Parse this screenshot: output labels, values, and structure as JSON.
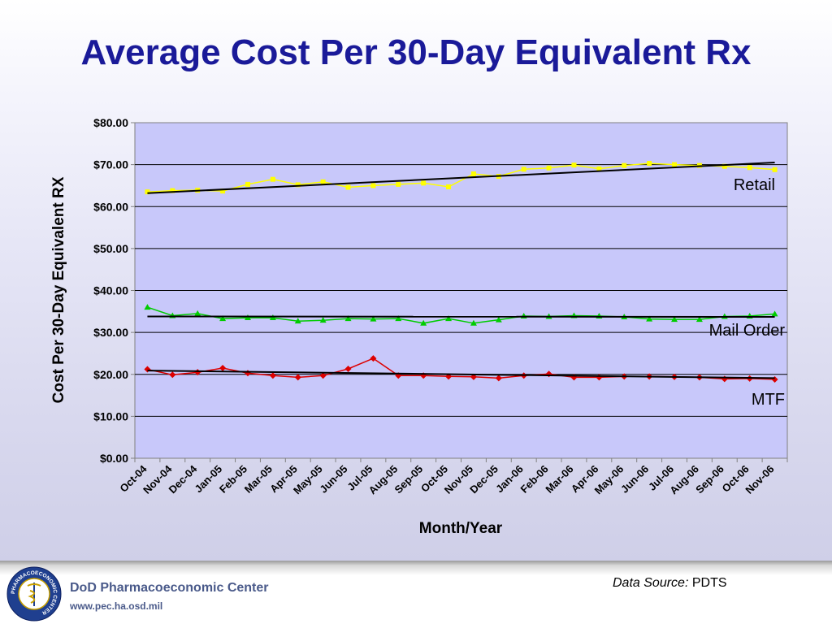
{
  "slide": {
    "title": "Average Cost Per 30-Day Equivalent Rx",
    "data_source_label": "Data Source:",
    "data_source_value": "PDTS"
  },
  "footer": {
    "org_name": "DoD Pharmacoeconomic Center",
    "url": "www.pec.ha.osd.mil",
    "seal_icon": "pharmacoeconomic-center-seal-icon",
    "seal_text": "PHARMACOECONOMIC CENTER"
  },
  "chart_data": {
    "type": "line",
    "title": "",
    "xlabel": "Month/Year",
    "ylabel": "Cost Per 30-Day Equivalent RX",
    "ylim": [
      0,
      80
    ],
    "yticks": [
      "$0.00",
      "$10.00",
      "$20.00",
      "$30.00",
      "$40.00",
      "$50.00",
      "$60.00",
      "$70.00",
      "$80.00"
    ],
    "grid": true,
    "categories": [
      "Oct-04",
      "Nov-04",
      "Dec-04",
      "Jan-05",
      "Feb-05",
      "Mar-05",
      "Apr-05",
      "May-05",
      "Jun-05",
      "Jul-05",
      "Aug-05",
      "Sep-05",
      "Oct-05",
      "Nov-05",
      "Dec-05",
      "Jan-06",
      "Feb-06",
      "Mar-06",
      "Apr-06",
      "May-06",
      "Jun-06",
      "Jul-06",
      "Aug-06",
      "Sep-06",
      "Oct-06",
      "Nov-06"
    ],
    "series": [
      {
        "name": "Retail",
        "color": "#ffff00",
        "marker": "square",
        "values": [
          63.5,
          63.8,
          63.9,
          63.7,
          65.3,
          66.5,
          65.2,
          65.9,
          64.6,
          65.0,
          65.3,
          65.6,
          64.7,
          67.8,
          67.2,
          68.9,
          69.2,
          69.9,
          69.0,
          69.8,
          70.3,
          70.0,
          69.8,
          69.6,
          69.3,
          68.8
        ],
        "trend": [
          63.2,
          70.5
        ]
      },
      {
        "name": "Mail Order",
        "color": "#00cc00",
        "marker": "triangle",
        "values": [
          36.0,
          34.0,
          34.5,
          33.3,
          33.5,
          33.5,
          32.7,
          32.9,
          33.3,
          33.2,
          33.3,
          32.2,
          33.3,
          32.2,
          33.0,
          33.9,
          33.8,
          34.0,
          33.9,
          33.7,
          33.2,
          33.1,
          33.1,
          33.8,
          33.9,
          34.4
        ],
        "trend": [
          33.8,
          33.7
        ]
      },
      {
        "name": "MTF",
        "color": "#dd0000",
        "marker": "diamond",
        "values": [
          21.2,
          19.9,
          20.5,
          21.5,
          20.3,
          19.7,
          19.3,
          19.7,
          21.3,
          23.8,
          19.7,
          19.7,
          19.5,
          19.4,
          19.1,
          19.7,
          20.1,
          19.3,
          19.3,
          19.5,
          19.5,
          19.4,
          19.3,
          18.9,
          19.0,
          18.8
        ],
        "trend": [
          20.9,
          19.1
        ]
      }
    ]
  }
}
